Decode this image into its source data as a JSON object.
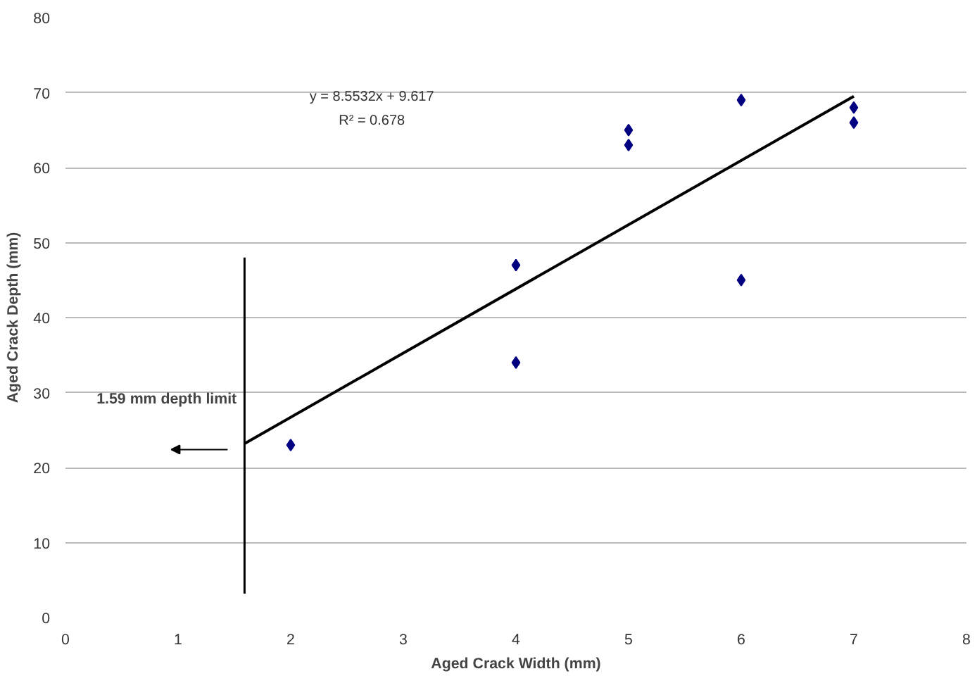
{
  "chart_data": {
    "type": "scatter",
    "xlabel": "Aged Crack Width (mm)",
    "ylabel": "Aged Crack Depth (mm)",
    "xlim": [
      0,
      8
    ],
    "xticks": [
      0,
      1,
      2,
      3,
      4,
      5,
      6,
      7,
      8
    ],
    "ylim": [
      0,
      80
    ],
    "yticks": [
      0,
      10,
      20,
      30,
      40,
      50,
      60,
      70,
      80
    ],
    "grid": "y",
    "series": [
      {
        "marker": "diamond",
        "color": "#000080",
        "x": [
          2,
          4,
          4,
          5,
          5,
          6,
          6,
          7,
          7
        ],
        "values": [
          23,
          34,
          47,
          63,
          65,
          45,
          69,
          66,
          68
        ]
      },
      {
        "type": "line",
        "marker": "none",
        "color": "#000000",
        "x": [
          1.59,
          7
        ],
        "values": [
          23.2,
          69.5
        ]
      }
    ],
    "annotations": [
      "y = 8.5532x + 9.617",
      "R² = 0.678"
    ],
    "ref_lines": [
      {
        "axis": "x",
        "value": 1.59,
        "label": "1.59 mm depth limit",
        "color": "#000000"
      }
    ]
  }
}
